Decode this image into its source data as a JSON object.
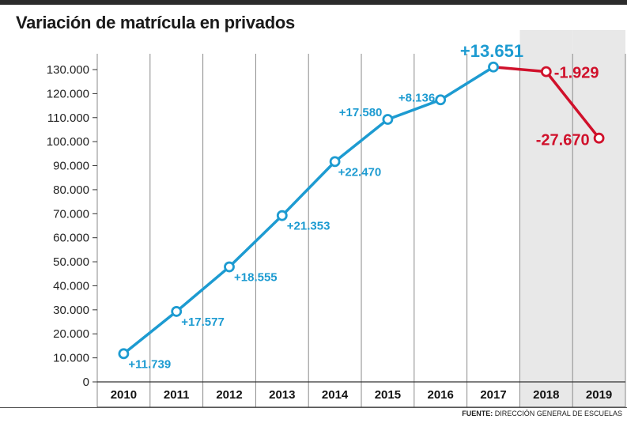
{
  "title": "Variación de matrícula en privados",
  "source": {
    "prefix": "FUENTE:",
    "text": " DIRECCIÓN GENERAL DE ESCUELAS"
  },
  "colors": {
    "up": "#1d9bd1",
    "down": "#d0112b",
    "shade": "#e8e8e8",
    "grid": "#8a8a8a"
  },
  "chart_data": {
    "type": "line",
    "title": "Variación de matrícula en privados",
    "xlabel": "",
    "ylabel": "",
    "categories": [
      "2010",
      "2011",
      "2012",
      "2013",
      "2014",
      "2015",
      "2016",
      "2017",
      "2018",
      "2019"
    ],
    "y_ticks": [
      "0",
      "10.000",
      "20.000",
      "30.000",
      "40.000",
      "50.000",
      "60.000",
      "70.000",
      "80.000",
      "90.000",
      "100.000",
      "110.000",
      "120.000",
      "130.000"
    ],
    "ylim": [
      0,
      135000
    ],
    "series": [
      {
        "values": [
          11739,
          29316,
          47871,
          69224,
          91694,
          109274,
          117410,
          131061,
          129132,
          101462
        ]
      }
    ],
    "data_labels": [
      "+11.739",
      "+17.577",
      "+18.555",
      "+21.353",
      "+22.470",
      "+17.580",
      "+8.136",
      "+13.651",
      "-1.929",
      "-27.670"
    ],
    "shaded_categories": [
      "2018",
      "2019"
    ],
    "grid": "vertical"
  }
}
